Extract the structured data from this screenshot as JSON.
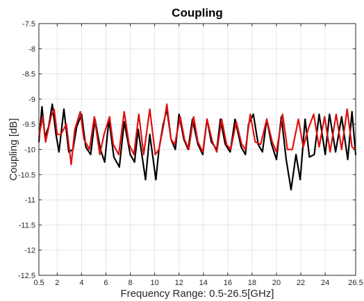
{
  "chart_data": {
    "type": "line",
    "title": "Coupling",
    "xlabel": "Frequency Range: 0.5-26.5[GHz]",
    "ylabel": "Coupling [dB]",
    "xlim": [
      0.5,
      26.5
    ],
    "ylim": [
      -12.5,
      -7.5
    ],
    "xticks": [
      0.5,
      2,
      4,
      6,
      8,
      10,
      12,
      14,
      16,
      18,
      20,
      22,
      24,
      26.5
    ],
    "xtick_labels": [
      "0.5",
      "2",
      "4",
      "6",
      "8",
      "10",
      "12",
      "14",
      "16",
      "18",
      "20",
      "22",
      "24",
      "26.5"
    ],
    "yticks": [
      -7.5,
      -8,
      -8.5,
      -9,
      -9.5,
      -10,
      -10.5,
      -11,
      -11.5,
      -12,
      -12.5
    ],
    "ytick_labels": [
      "-7.5",
      "-8",
      "-8.5",
      "-9",
      "-9.5",
      "-10",
      "-10.5",
      "-11",
      "-11.5",
      "-12",
      "-12.5"
    ],
    "grid": true,
    "legend": "none",
    "series": [
      {
        "color": "#000000",
        "points": [
          [
            0.5,
            -9.85
          ],
          [
            0.75,
            -9.15
          ],
          [
            1.0,
            -9.75
          ],
          [
            1.3,
            -9.55
          ],
          [
            1.6,
            -9.1
          ],
          [
            1.9,
            -9.7
          ],
          [
            2.15,
            -10.05
          ],
          [
            2.55,
            -9.2
          ],
          [
            2.95,
            -10.05
          ],
          [
            3.3,
            -10.0
          ],
          [
            3.6,
            -9.55
          ],
          [
            4.0,
            -9.3
          ],
          [
            4.35,
            -9.95
          ],
          [
            4.75,
            -10.1
          ],
          [
            5.1,
            -9.4
          ],
          [
            5.55,
            -10.0
          ],
          [
            5.9,
            -10.25
          ],
          [
            6.25,
            -9.4
          ],
          [
            6.65,
            -10.15
          ],
          [
            7.1,
            -10.35
          ],
          [
            7.5,
            -9.45
          ],
          [
            8.0,
            -10.1
          ],
          [
            8.35,
            -10.25
          ],
          [
            8.65,
            -9.6
          ],
          [
            9.25,
            -10.6
          ],
          [
            9.6,
            -9.7
          ],
          [
            10.1,
            -10.6
          ],
          [
            10.35,
            -10.0
          ],
          [
            10.7,
            -9.5
          ],
          [
            11.0,
            -9.2
          ],
          [
            11.35,
            -9.8
          ],
          [
            11.7,
            -10.0
          ],
          [
            12.0,
            -9.3
          ],
          [
            12.4,
            -9.8
          ],
          [
            12.75,
            -10.0
          ],
          [
            13.1,
            -9.4
          ],
          [
            13.55,
            -9.9
          ],
          [
            13.95,
            -10.1
          ],
          [
            14.3,
            -9.4
          ],
          [
            14.65,
            -9.85
          ],
          [
            15.1,
            -10.0
          ],
          [
            15.4,
            -9.4
          ],
          [
            15.8,
            -9.9
          ],
          [
            16.2,
            -10.05
          ],
          [
            16.6,
            -9.4
          ],
          [
            17.1,
            -9.95
          ],
          [
            17.45,
            -10.1
          ],
          [
            17.7,
            -9.5
          ],
          [
            18.1,
            -9.3
          ],
          [
            18.5,
            -9.9
          ],
          [
            18.85,
            -10.05
          ],
          [
            19.2,
            -9.4
          ],
          [
            19.6,
            -9.9
          ],
          [
            20.0,
            -10.2
          ],
          [
            20.4,
            -9.35
          ],
          [
            20.8,
            -10.2
          ],
          [
            21.2,
            -10.8
          ],
          [
            21.6,
            -10.1
          ],
          [
            21.95,
            -10.6
          ],
          [
            22.35,
            -9.4
          ],
          [
            22.7,
            -10.15
          ],
          [
            23.1,
            -10.1
          ],
          [
            23.5,
            -9.3
          ],
          [
            24.0,
            -10.1
          ],
          [
            24.35,
            -9.3
          ],
          [
            24.85,
            -10.05
          ],
          [
            25.35,
            -9.35
          ],
          [
            25.85,
            -10.2
          ],
          [
            26.2,
            -9.25
          ],
          [
            26.5,
            -10.1
          ]
        ]
      },
      {
        "color": "#e01010",
        "points": [
          [
            0.5,
            -9.75
          ],
          [
            0.8,
            -9.35
          ],
          [
            1.05,
            -9.85
          ],
          [
            1.5,
            -9.35
          ],
          [
            1.75,
            -9.2
          ],
          [
            2.0,
            -9.7
          ],
          [
            2.3,
            -9.7
          ],
          [
            2.75,
            -9.5
          ],
          [
            3.15,
            -10.3
          ],
          [
            3.45,
            -9.6
          ],
          [
            3.9,
            -9.25
          ],
          [
            4.2,
            -9.8
          ],
          [
            4.65,
            -10.0
          ],
          [
            5.05,
            -9.35
          ],
          [
            5.5,
            -10.1
          ],
          [
            5.85,
            -9.7
          ],
          [
            6.3,
            -9.35
          ],
          [
            6.6,
            -9.9
          ],
          [
            7.05,
            -10.1
          ],
          [
            7.5,
            -9.25
          ],
          [
            7.9,
            -9.9
          ],
          [
            8.3,
            -10.1
          ],
          [
            8.7,
            -9.3
          ],
          [
            9.1,
            -10.1
          ],
          [
            9.6,
            -9.2
          ],
          [
            10.05,
            -10.1
          ],
          [
            10.35,
            -10.0
          ],
          [
            10.75,
            -9.5
          ],
          [
            11.0,
            -9.1
          ],
          [
            11.35,
            -9.8
          ],
          [
            11.65,
            -9.9
          ],
          [
            12.1,
            -9.35
          ],
          [
            12.45,
            -9.8
          ],
          [
            12.8,
            -10.0
          ],
          [
            13.2,
            -9.35
          ],
          [
            13.55,
            -9.85
          ],
          [
            13.95,
            -10.05
          ],
          [
            14.3,
            -9.4
          ],
          [
            14.75,
            -9.85
          ],
          [
            15.1,
            -10.05
          ],
          [
            15.5,
            -9.4
          ],
          [
            15.9,
            -9.9
          ],
          [
            16.25,
            -10.0
          ],
          [
            16.7,
            -9.45
          ],
          [
            17.15,
            -9.9
          ],
          [
            17.45,
            -10.0
          ],
          [
            17.85,
            -9.3
          ],
          [
            18.25,
            -9.85
          ],
          [
            18.7,
            -9.9
          ],
          [
            19.2,
            -9.4
          ],
          [
            19.65,
            -9.85
          ],
          [
            20.0,
            -10.05
          ],
          [
            20.5,
            -9.3
          ],
          [
            20.9,
            -10.0
          ],
          [
            21.3,
            -10.0
          ],
          [
            21.8,
            -9.4
          ],
          [
            22.2,
            -9.95
          ],
          [
            22.6,
            -9.6
          ],
          [
            23.05,
            -9.3
          ],
          [
            23.5,
            -9.95
          ],
          [
            23.95,
            -9.35
          ],
          [
            24.4,
            -10.05
          ],
          [
            24.9,
            -9.3
          ],
          [
            25.35,
            -10.0
          ],
          [
            25.8,
            -9.2
          ],
          [
            26.2,
            -9.95
          ],
          [
            26.5,
            -10.0
          ]
        ]
      }
    ]
  }
}
